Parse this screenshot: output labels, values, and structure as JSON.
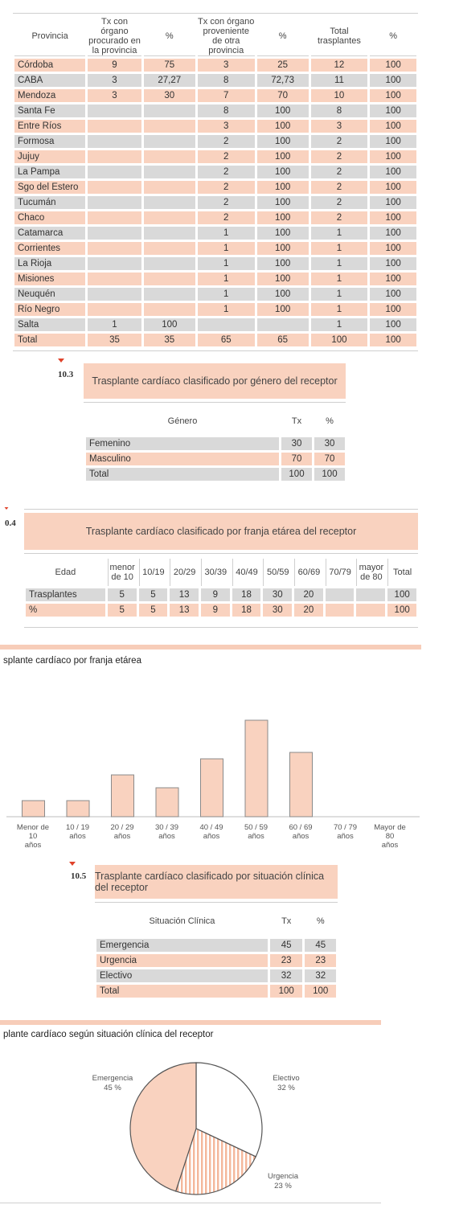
{
  "province_table": {
    "headers": [
      "Provincia",
      "Tx con órgano procurado en la provincia",
      "%",
      "Tx con órgano proveniente de otra provincia",
      "%",
      "Total trasplantes",
      "%"
    ],
    "rows": [
      [
        "Córdoba",
        "9",
        "75",
        "3",
        "25",
        "12",
        "100"
      ],
      [
        "CABA",
        "3",
        "27,27",
        "8",
        "72,73",
        "11",
        "100"
      ],
      [
        "Mendoza",
        "3",
        "30",
        "7",
        "70",
        "10",
        "100"
      ],
      [
        "Santa Fe",
        "",
        "",
        "8",
        "100",
        "8",
        "100"
      ],
      [
        "Entre Ríos",
        "",
        "",
        "3",
        "100",
        "3",
        "100"
      ],
      [
        "Formosa",
        "",
        "",
        "2",
        "100",
        "2",
        "100"
      ],
      [
        "Jujuy",
        "",
        "",
        "2",
        "100",
        "2",
        "100"
      ],
      [
        "La Pampa",
        "",
        "",
        "2",
        "100",
        "2",
        "100"
      ],
      [
        "Sgo del Estero",
        "",
        "",
        "2",
        "100",
        "2",
        "100"
      ],
      [
        "Tucumán",
        "",
        "",
        "2",
        "100",
        "2",
        "100"
      ],
      [
        "Chaco",
        "",
        "",
        "2",
        "100",
        "2",
        "100"
      ],
      [
        "Catamarca",
        "",
        "",
        "1",
        "100",
        "1",
        "100"
      ],
      [
        "Corrientes",
        "",
        "",
        "1",
        "100",
        "1",
        "100"
      ],
      [
        "La Rioja",
        "",
        "",
        "1",
        "100",
        "1",
        "100"
      ],
      [
        "Misiones",
        "",
        "",
        "1",
        "100",
        "1",
        "100"
      ],
      [
        "Neuquén",
        "",
        "",
        "1",
        "100",
        "1",
        "100"
      ],
      [
        "Río Negro",
        "",
        "",
        "1",
        "100",
        "1",
        "100"
      ],
      [
        "Salta",
        "1",
        "100",
        "",
        "",
        "1",
        "100"
      ],
      [
        "Total",
        "35",
        "35",
        "65",
        "65",
        "100",
        "100"
      ]
    ]
  },
  "section_10_3": {
    "number": "10.3",
    "title": "Trasplante cardíaco clasificado por género del receptor",
    "headers": [
      "Género",
      "Tx",
      "%"
    ],
    "rows": [
      [
        "Femenino",
        "30",
        "30"
      ],
      [
        "Masculino",
        "70",
        "70"
      ],
      [
        "Total",
        "100",
        "100"
      ]
    ]
  },
  "section_10_4": {
    "number": "0.4",
    "title": "Trasplante cardíaco clasificado por franja etárea del receptor",
    "headers": [
      "Edad",
      "menor de 10",
      "10/19",
      "20/29",
      "30/39",
      "40/49",
      "50/59",
      "60/69",
      "70/79",
      "mayor de 80",
      "Total"
    ],
    "rows": [
      [
        "Trasplantes",
        "5",
        "5",
        "13",
        "9",
        "18",
        "30",
        "20",
        "",
        "",
        "100"
      ],
      [
        "%",
        "5",
        "5",
        "13",
        "9",
        "18",
        "30",
        "20",
        "",
        "",
        "100"
      ]
    ]
  },
  "age_chart": {
    "caption": "splante cardíaco por franja etárea",
    "chart_data": {
      "type": "bar",
      "categories": [
        "Menor de 10 años",
        "10 / 19 años",
        "20 / 29 años",
        "30 / 39 años",
        "40 / 49 años",
        "50 / 59 años",
        "60 / 69 años",
        "70 / 79 años",
        "Mayor de 80 años"
      ],
      "values": [
        5,
        5,
        13,
        9,
        18,
        30,
        20,
        0,
        0
      ],
      "ylim": [
        0,
        30
      ],
      "grid": false,
      "bar_color": "#f9d2bf",
      "bar_stroke": "#8a8a8a"
    }
  },
  "section_10_5": {
    "number": "10.5",
    "title": "Trasplante cardíaco clasificado por situación clínica del receptor",
    "headers": [
      "Situación Clínica",
      "Tx",
      "%"
    ],
    "rows": [
      [
        "Emergencia",
        "45",
        "45"
      ],
      [
        "Urgencia",
        "23",
        "23"
      ],
      [
        "Electivo",
        "32",
        "32"
      ],
      [
        "Total",
        "100",
        "100"
      ]
    ]
  },
  "pie_chart": {
    "caption": "plante cardíaco según situación clínica del receptor",
    "chart_data": {
      "type": "pie",
      "slices": [
        {
          "label": "Emergencia",
          "value": 45,
          "text": "45 %",
          "fill": "solid",
          "color": "#f9d2bf"
        },
        {
          "label": "Electivo",
          "value": 32,
          "text": "32 %",
          "fill": "white",
          "color": "#ffffff"
        },
        {
          "label": "Urgencia",
          "value": 23,
          "text": "23 %",
          "fill": "hatched",
          "color": "#f9d2bf"
        }
      ]
    }
  },
  "colors": {
    "peach": "#f9d2bf",
    "gray": "#d9d9d9",
    "accent": "#e0422a"
  }
}
